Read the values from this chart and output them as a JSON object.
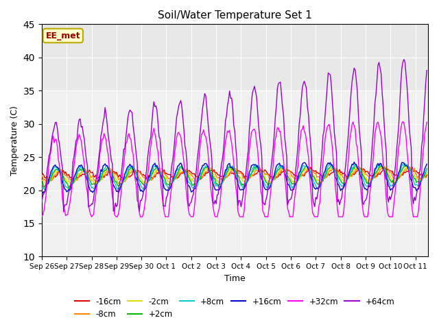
{
  "title": "Soil/Water Temperature Set 1",
  "xlabel": "Time",
  "ylabel": "Temperature (C)",
  "ylim": [
    10,
    45
  ],
  "yticks": [
    10,
    15,
    20,
    25,
    30,
    35,
    40,
    45
  ],
  "num_days": 15.5,
  "hours_per_day": 24,
  "bg_band_low": 35,
  "bg_upper_color": "#e8e8e8",
  "bg_lower_color": "#f0f0f0",
  "series_colors": {
    "-16cm": "#dd0000",
    "-8cm": "#ff8800",
    "-2cm": "#dddd00",
    "+2cm": "#00bb00",
    "+8cm": "#00cccc",
    "+16cm": "#0000cc",
    "+32cm": "#ff00ff",
    "+64cm": "#9900cc"
  },
  "tick_labels": [
    "Sep 26",
    "Sep 27",
    "Sep 28",
    "Sep 29",
    "Sep 30",
    "Oct 1",
    "Oct 2",
    "Oct 3",
    "Oct 4",
    "Oct 5",
    "Oct 6",
    "Oct 7",
    "Oct 8",
    "Oct 9",
    "Oct 10",
    "Oct 11"
  ],
  "legend_label": "EE_met",
  "legend_bg": "#ffffcc",
  "legend_border": "#bbaa00"
}
